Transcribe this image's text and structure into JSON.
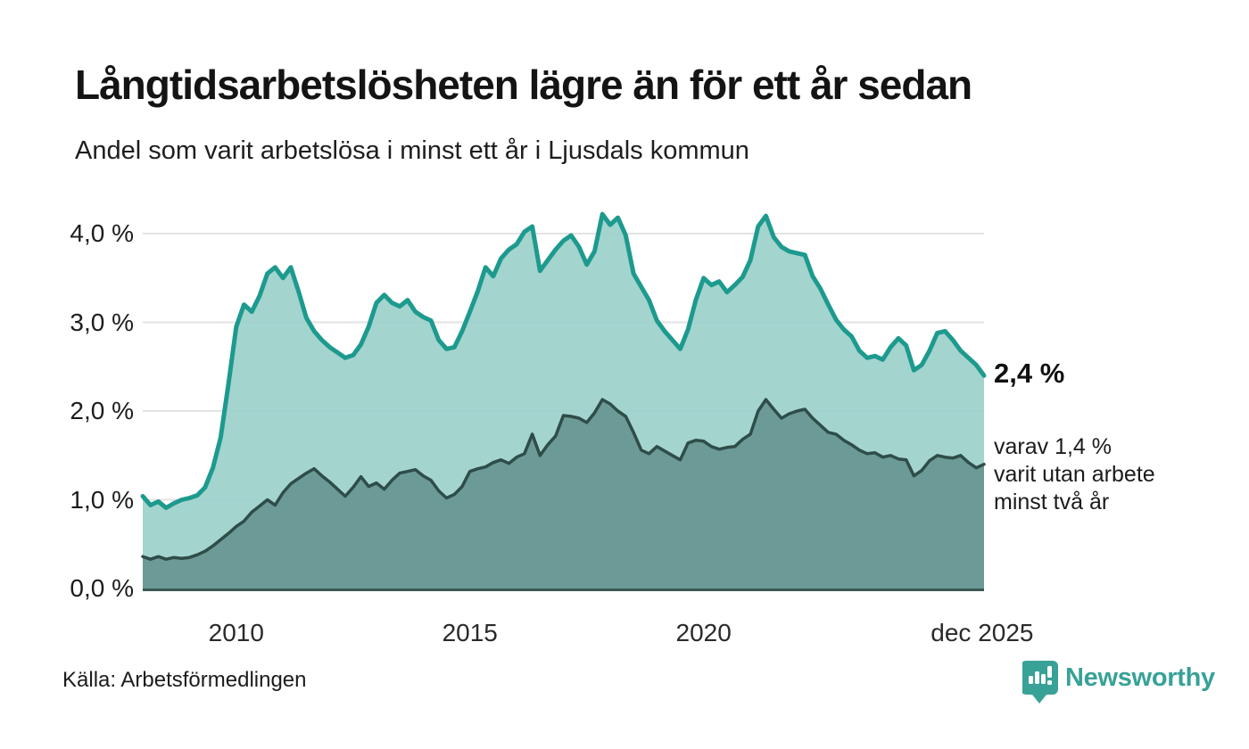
{
  "header": {
    "title": "Långtidsarbetslösheten lägre än för ett år sedan",
    "subtitle": "Andel som varit arbetslösa i minst ett år i Ljusdals kommun"
  },
  "annotations": {
    "latest_value": "2,4 %",
    "secondary_lines": [
      "varav 1,4 %",
      "varit utan arbete",
      "minst två år"
    ]
  },
  "footer": {
    "source": "Källa: Arbetsförmedlingen",
    "brand": "Newsworthy"
  },
  "colors": {
    "accent_teal": "#1d9a8e",
    "light_fill": "#9dd1ca",
    "dark_line": "#2e4d49",
    "dark_fill": "#6a9894",
    "grid": "#e3e3e6",
    "axis_baseline": "#3c5954",
    "logo_teal": "#38a198",
    "text": "#161616"
  },
  "chart_data": {
    "type": "area",
    "title": "Långtidsarbetslösheten lägre än för ett år sedan",
    "xlabel": "",
    "ylabel": "",
    "ylim": [
      0,
      4.3
    ],
    "grid": "horizontal",
    "legend_position": "none",
    "x_axis": {
      "start_year": 2008.0,
      "step_years": 0.166667,
      "ticks": [
        {
          "label": "2010",
          "year": 2010.0
        },
        {
          "label": "2015",
          "year": 2015.0
        },
        {
          "label": "2020",
          "year": 2020.0
        },
        {
          "label": "dec 2025",
          "year": 2025.96
        }
      ]
    },
    "y_axis": {
      "ticks": [
        {
          "label": "0,0 %",
          "value": 0
        },
        {
          "label": "1,0 %",
          "value": 1
        },
        {
          "label": "2,0 %",
          "value": 2
        },
        {
          "label": "3,0 %",
          "value": 3
        },
        {
          "label": "4,0 %",
          "value": 4
        }
      ]
    },
    "series": [
      {
        "name": "Andel arbetslösa minst ett år",
        "latest_label": "2,4 %",
        "line_color": "#1d9a8e",
        "fill_color": "rgba(157,209,202,0.93)",
        "line_width": 5,
        "values": [
          1.04,
          0.94,
          0.98,
          0.91,
          0.96,
          1.0,
          1.02,
          1.05,
          1.14,
          1.36,
          1.7,
          2.3,
          2.95,
          3.2,
          3.12,
          3.3,
          3.55,
          3.62,
          3.5,
          3.62,
          3.35,
          3.05,
          2.9,
          2.8,
          2.72,
          2.66,
          2.6,
          2.63,
          2.75,
          2.95,
          3.22,
          3.31,
          3.22,
          3.18,
          3.25,
          3.12,
          3.06,
          3.02,
          2.8,
          2.7,
          2.72,
          2.9,
          3.12,
          3.35,
          3.62,
          3.52,
          3.72,
          3.82,
          3.88,
          4.02,
          4.08,
          3.58,
          3.7,
          3.82,
          3.92,
          3.98,
          3.85,
          3.65,
          3.8,
          4.22,
          4.1,
          4.18,
          3.98,
          3.55,
          3.4,
          3.25,
          3.02,
          2.9,
          2.8,
          2.7,
          2.92,
          3.25,
          3.5,
          3.42,
          3.46,
          3.34,
          3.42,
          3.51,
          3.7,
          4.08,
          4.2,
          3.96,
          3.85,
          3.8,
          3.78,
          3.76,
          3.52,
          3.38,
          3.2,
          3.03,
          2.92,
          2.84,
          2.68,
          2.6,
          2.62,
          2.58,
          2.72,
          2.82,
          2.74,
          2.46,
          2.52,
          2.68,
          2.88,
          2.9,
          2.8,
          2.68,
          2.6,
          2.52,
          2.4
        ]
      },
      {
        "name": "Andel arbetslösa minst två år",
        "latest_label": "1,4 %",
        "line_color": "#2e4d49",
        "fill_color": "rgba(106,152,148,0.97)",
        "line_width": 3.5,
        "values": [
          0.36,
          0.33,
          0.36,
          0.33,
          0.35,
          0.34,
          0.35,
          0.38,
          0.42,
          0.48,
          0.55,
          0.62,
          0.7,
          0.76,
          0.86,
          0.93,
          1.0,
          0.94,
          1.08,
          1.18,
          1.24,
          1.3,
          1.35,
          1.27,
          1.2,
          1.12,
          1.04,
          1.14,
          1.26,
          1.15,
          1.19,
          1.12,
          1.22,
          1.3,
          1.32,
          1.34,
          1.27,
          1.22,
          1.1,
          1.02,
          1.06,
          1.15,
          1.32,
          1.35,
          1.37,
          1.42,
          1.45,
          1.41,
          1.48,
          1.52,
          1.74,
          1.5,
          1.62,
          1.72,
          1.95,
          1.94,
          1.92,
          1.87,
          1.98,
          2.13,
          2.08,
          2.0,
          1.94,
          1.76,
          1.56,
          1.52,
          1.6,
          1.55,
          1.5,
          1.45,
          1.64,
          1.67,
          1.66,
          1.6,
          1.57,
          1.59,
          1.6,
          1.68,
          1.74,
          2.0,
          2.13,
          2.02,
          1.92,
          1.97,
          2.0,
          2.02,
          1.92,
          1.84,
          1.76,
          1.74,
          1.67,
          1.62,
          1.56,
          1.52,
          1.53,
          1.48,
          1.5,
          1.46,
          1.45,
          1.27,
          1.33,
          1.44,
          1.5,
          1.48,
          1.47,
          1.5,
          1.42,
          1.36,
          1.4
        ]
      }
    ]
  }
}
